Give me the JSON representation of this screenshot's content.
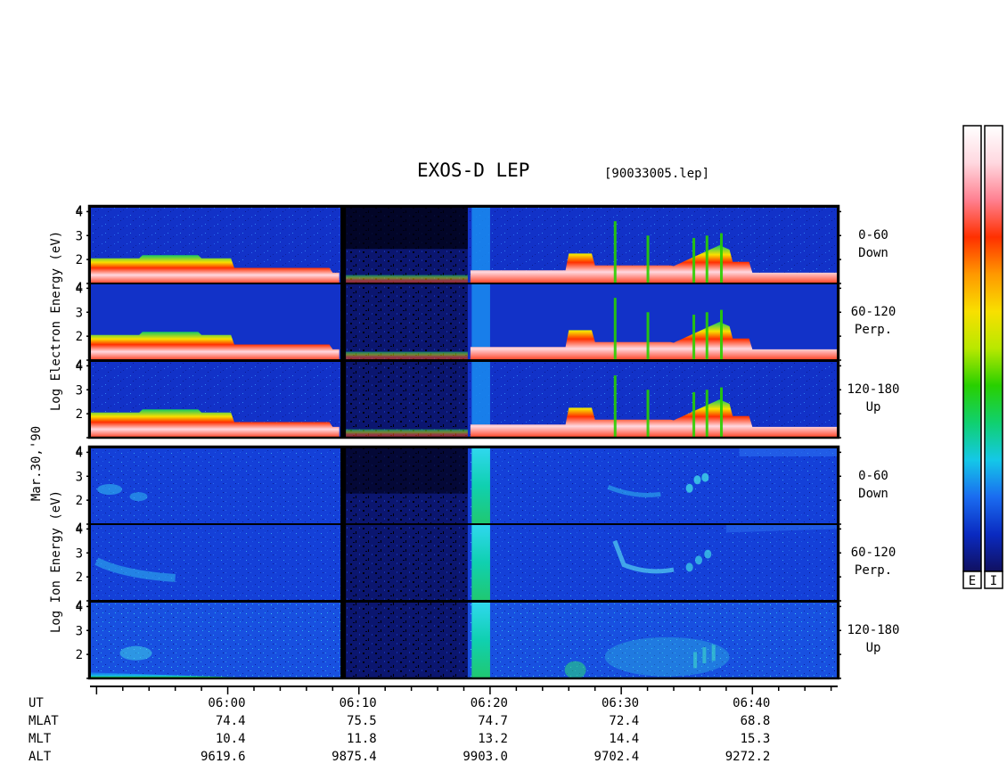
{
  "title": "EXOS-D LEP",
  "file_label": "[90033005.lep]",
  "date_label": "Mar.30,'90",
  "colors": {
    "frame": "#000000",
    "background_blue": "#1030c8",
    "void": "#050520"
  },
  "chart_data": {
    "type": "heatmap",
    "x_axis": {
      "label": "UT",
      "ticks": [
        "06:00",
        "06:10",
        "06:20",
        "06:30",
        "06:40"
      ],
      "range_minutes": [
        -10.5,
        46.5
      ]
    },
    "y_axis": {
      "ticks": [
        "1",
        "2",
        "3",
        "4"
      ],
      "tick_labels_shown": [
        "2",
        "3",
        "4"
      ],
      "range": [
        1,
        4.2
      ]
    },
    "groups": [
      {
        "name_lines": [
          "Log",
          "Electron",
          "Energy",
          "(eV)"
        ],
        "panels": [
          {
            "angle": "0-60",
            "direction": "Down"
          },
          {
            "angle": "60-120",
            "direction": "Perp."
          },
          {
            "angle": "120-180",
            "direction": "Up"
          }
        ]
      },
      {
        "name_lines": [
          "Log",
          "Ion",
          "Energy",
          "(eV)"
        ],
        "panels": [
          {
            "angle": "0-60",
            "direction": "Down"
          },
          {
            "angle": "60-120",
            "direction": "Perp."
          },
          {
            "angle": "120-180",
            "direction": "Up"
          }
        ]
      }
    ],
    "ephemeris": [
      {
        "name": "UT",
        "values": [
          "06:00",
          "06:10",
          "06:20",
          "06:30",
          "06:40"
        ]
      },
      {
        "name": "MLAT",
        "values": [
          "74.4",
          "75.5",
          "74.7",
          "72.4",
          "68.8"
        ]
      },
      {
        "name": "MLT",
        "values": [
          "10.4",
          "11.8",
          "13.2",
          "14.4",
          "15.3"
        ]
      },
      {
        "name": "ALT",
        "values": [
          "9619.6",
          "9875.4",
          "9903.0",
          "9702.4",
          "9272.2"
        ]
      }
    ],
    "colorbars": [
      {
        "label": "E"
      },
      {
        "label": "I"
      }
    ],
    "colorscale": [
      "#101060",
      "#0a2ac0",
      "#1a6cf0",
      "#14c8e8",
      "#10d070",
      "#28d000",
      "#b8e800",
      "#f8e000",
      "#ff9800",
      "#ff3000",
      "#ff8090",
      "#ffd8e0",
      "#ffffff"
    ]
  }
}
